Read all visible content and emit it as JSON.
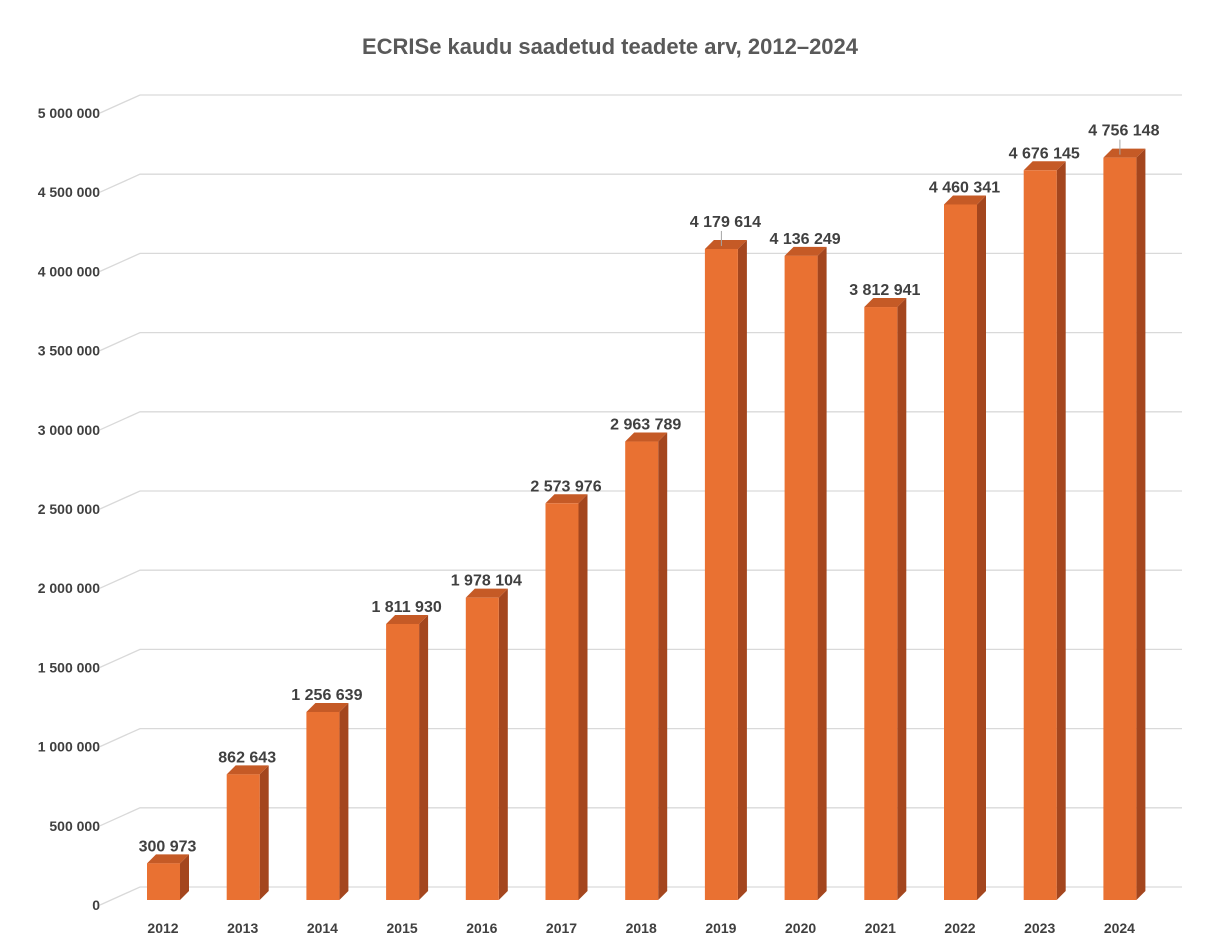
{
  "chart_data": {
    "type": "bar",
    "style": "3d-column",
    "title": "ECRISe kaudu saadetud teadete arv, 2012–2024",
    "xlabel": "",
    "ylabel": "",
    "categories": [
      "2012",
      "2013",
      "2014",
      "2015",
      "2016",
      "2017",
      "2018",
      "2019",
      "2020",
      "2021",
      "2022",
      "2023",
      "2024"
    ],
    "values": [
      300973,
      862643,
      1256639,
      1811930,
      1978104,
      2573976,
      2963789,
      4179614,
      4136249,
      3812941,
      4460341,
      4676145,
      4756148
    ],
    "data_labels": [
      "300 973",
      "862 643",
      "1 256 639",
      "1 811 930",
      "1 978 104",
      "2 573 976",
      "2 963 789",
      "4 179 614",
      "4 136 249",
      "3 812 941",
      "4 460 341",
      "4 676 145",
      "4 756 148"
    ],
    "ylim": [
      0,
      5000000
    ],
    "yticks": [
      0,
      500000,
      1000000,
      1500000,
      2000000,
      2500000,
      3000000,
      3500000,
      4000000,
      4500000,
      5000000
    ],
    "ytick_labels": [
      "0",
      "500 000",
      "1 000 000",
      "1 500 000",
      "2 000 000",
      "2 500 000",
      "3 000 000",
      "3 500 000",
      "4 000 000",
      "4 500 000",
      "5 000 000"
    ],
    "grid": true,
    "legend": "none",
    "colors": {
      "bar_front": "#E97132",
      "bar_side": "#A4461E",
      "bar_top": "#C55A26",
      "gridline": "#D9D9D9",
      "text": "#404040",
      "title": "#595959"
    }
  }
}
